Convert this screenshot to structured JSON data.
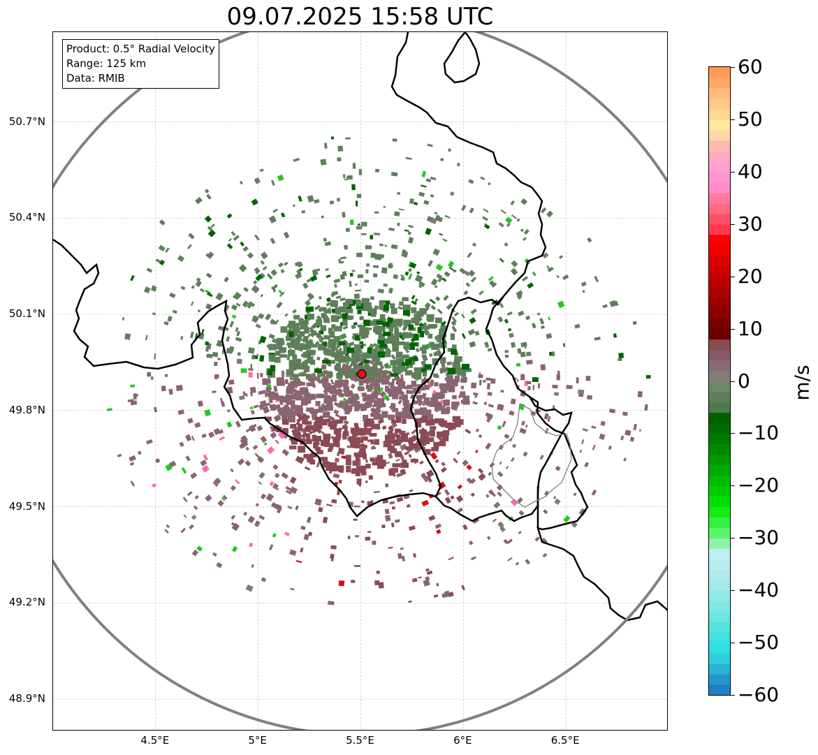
{
  "title": "09.07.2025 15:58 UTC",
  "info_box": {
    "product": "Product: 0.5° Radial Velocity",
    "range": "Range: 125 km",
    "source": "Data: RMIB"
  },
  "map": {
    "extent": {
      "lon_min": 4.0,
      "lon_max": 7.0,
      "lat_min": 48.8,
      "lat_max": 50.98
    },
    "radar_site": {
      "lon": 5.505,
      "lat": 49.914,
      "color": "#e8111b"
    },
    "range_ring_km": 125,
    "range_ring_color": "#808080",
    "latitude_labels": [
      {
        "lat": 50.7,
        "label": "50.7°N"
      },
      {
        "lat": 50.4,
        "label": "50.4°N"
      },
      {
        "lat": 50.1,
        "label": "50.1°N"
      },
      {
        "lat": 49.8,
        "label": "49.8°N"
      },
      {
        "lat": 49.5,
        "label": "49.5°N"
      },
      {
        "lat": 49.2,
        "label": "49.2°N"
      },
      {
        "lat": 48.9,
        "label": "48.9°N"
      }
    ],
    "longitude_labels": [
      {
        "lon": 4.5,
        "label": "4.5°E"
      },
      {
        "lon": 5.0,
        "label": "5°E"
      },
      {
        "lon": 5.5,
        "label": "5.5°E"
      },
      {
        "lon": 6.0,
        "label": "6°E"
      },
      {
        "lon": 6.5,
        "label": "6.5°E"
      }
    ],
    "colors": {
      "approaching_strong": "#006400",
      "approaching": "#5e7f5a",
      "near_zero": "#7f7a74",
      "receding": "#8a6470",
      "receding_strong": "#8b4a55",
      "red": "#d0101a",
      "bright_green": "#22c822",
      "pink": "#ff69b4",
      "cyan": "#40e0d0"
    }
  },
  "colorbar": {
    "unit": "m/s",
    "min": -60,
    "max": 60,
    "ticks": [
      {
        "value": 60,
        "label": "60"
      },
      {
        "value": 50,
        "label": "50"
      },
      {
        "value": 40,
        "label": "40"
      },
      {
        "value": 30,
        "label": "30"
      },
      {
        "value": 20,
        "label": "20"
      },
      {
        "value": 10,
        "label": "10"
      },
      {
        "value": 0,
        "label": "0"
      },
      {
        "value": -10,
        "label": "−10"
      },
      {
        "value": -20,
        "label": "−20"
      },
      {
        "value": -30,
        "label": "−30"
      },
      {
        "value": -40,
        "label": "−40"
      },
      {
        "value": -50,
        "label": "−50"
      },
      {
        "value": -60,
        "label": "−60"
      }
    ],
    "stops": [
      {
        "from": -60,
        "to": -58,
        "color": "#1f7fc4"
      },
      {
        "from": -58,
        "to": -56,
        "color": "#2498cb"
      },
      {
        "from": -56,
        "to": -54,
        "color": "#29b3d6"
      },
      {
        "from": -54,
        "to": -52,
        "color": "#2ccfdc"
      },
      {
        "from": -52,
        "to": -50,
        "color": "#30dfe0"
      },
      {
        "from": -50,
        "to": -48,
        "color": "#3fe0df"
      },
      {
        "from": -48,
        "to": -46,
        "color": "#54e3df"
      },
      {
        "from": -46,
        "to": -44,
        "color": "#6be6e2"
      },
      {
        "from": -44,
        "to": -42,
        "color": "#80e8e3"
      },
      {
        "from": -42,
        "to": -40,
        "color": "#92eae6"
      },
      {
        "from": -40,
        "to": -38,
        "color": "#a2ebe8"
      },
      {
        "from": -38,
        "to": -36,
        "color": "#aeeaea"
      },
      {
        "from": -36,
        "to": -34,
        "color": "#b8ecee"
      },
      {
        "from": -34,
        "to": -32,
        "color": "#bfeeee"
      },
      {
        "from": -32,
        "to": -30,
        "color": "#90f0a8"
      },
      {
        "from": -30,
        "to": -28,
        "color": "#5af56a"
      },
      {
        "from": -28,
        "to": -26,
        "color": "#33f040"
      },
      {
        "from": -26,
        "to": -24,
        "color": "#10ee10"
      },
      {
        "from": -24,
        "to": -22,
        "color": "#00e000"
      },
      {
        "from": -22,
        "to": -20,
        "color": "#00cc00"
      },
      {
        "from": -20,
        "to": -18,
        "color": "#00bb00"
      },
      {
        "from": -18,
        "to": -16,
        "color": "#00aa00"
      },
      {
        "from": -16,
        "to": -14,
        "color": "#009900"
      },
      {
        "from": -14,
        "to": -12,
        "color": "#008800"
      },
      {
        "from": -12,
        "to": -10,
        "color": "#007a00"
      },
      {
        "from": -10,
        "to": -8,
        "color": "#006d00"
      },
      {
        "from": -8,
        "to": -6,
        "color": "#006000"
      },
      {
        "from": -6,
        "to": -4,
        "color": "#4e7a4e"
      },
      {
        "from": -4,
        "to": -2,
        "color": "#5e7f5a"
      },
      {
        "from": -2,
        "to": 0,
        "color": "#6e8768"
      },
      {
        "from": 0,
        "to": 2,
        "color": "#847c78"
      },
      {
        "from": 2,
        "to": 4,
        "color": "#8a6c78"
      },
      {
        "from": 4,
        "to": 6,
        "color": "#8a5a66"
      },
      {
        "from": 6,
        "to": 8,
        "color": "#8a4a52"
      },
      {
        "from": 8,
        "to": 10,
        "color": "#6a0000"
      },
      {
        "from": 10,
        "to": 12,
        "color": "#7a0000"
      },
      {
        "from": 12,
        "to": 14,
        "color": "#8a0000"
      },
      {
        "from": 14,
        "to": 16,
        "color": "#9a0000"
      },
      {
        "from": 16,
        "to": 18,
        "color": "#aa0000"
      },
      {
        "from": 18,
        "to": 20,
        "color": "#bb0000"
      },
      {
        "from": 20,
        "to": 22,
        "color": "#cc0000"
      },
      {
        "from": 22,
        "to": 24,
        "color": "#dd0000"
      },
      {
        "from": 24,
        "to": 26,
        "color": "#ee0000"
      },
      {
        "from": 26,
        "to": 28,
        "color": "#ff0000"
      },
      {
        "from": 28,
        "to": 30,
        "color": "#ff3a50"
      },
      {
        "from": 30,
        "to": 32,
        "color": "#ff5068"
      },
      {
        "from": 32,
        "to": 34,
        "color": "#ff6a82"
      },
      {
        "from": 34,
        "to": 36,
        "color": "#ff7aa0"
      },
      {
        "from": 36,
        "to": 38,
        "color": "#ff8cc8"
      },
      {
        "from": 38,
        "to": 40,
        "color": "#ff96d0"
      },
      {
        "from": 40,
        "to": 42,
        "color": "#ffa0d2"
      },
      {
        "from": 42,
        "to": 44,
        "color": "#ffaac0"
      },
      {
        "from": 44,
        "to": 46,
        "color": "#ffb8b0"
      },
      {
        "from": 46,
        "to": 48,
        "color": "#ffd8a8"
      },
      {
        "from": 48,
        "to": 50,
        "color": "#ffe8a0"
      },
      {
        "from": 50,
        "to": 52,
        "color": "#ffd890"
      },
      {
        "from": 52,
        "to": 54,
        "color": "#ffc888"
      },
      {
        "from": 54,
        "to": 56,
        "color": "#ffbc80"
      },
      {
        "from": 56,
        "to": 58,
        "color": "#ffa868"
      },
      {
        "from": 58,
        "to": 60,
        "color": "#ff9a58"
      }
    ]
  }
}
